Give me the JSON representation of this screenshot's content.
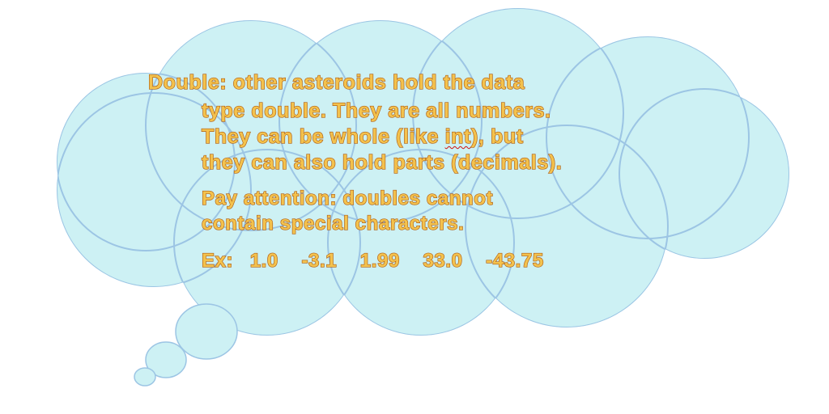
{
  "description_block": {
    "heading": "Double:",
    "line1": "other asteroids hold the data",
    "line2": "type double. They are all numbers.",
    "line3_before": "They can be whole (like ",
    "line3_flagged": "int",
    "line3_after": "), but",
    "line4": "they can also hold parts (decimals)."
  },
  "note_block": {
    "line1": "Pay attention: doubles cannot",
    "line2": "contain special characters."
  },
  "examples": {
    "label": "Ex:",
    "values": [
      "1.0",
      "-3.1",
      "1.99",
      "33.0",
      "-43.75"
    ]
  },
  "colors": {
    "cloud_fill": "#cdf1f4",
    "cloud_outline": "#9cc5e4",
    "text_fill": "#f3c24d",
    "text_outline": "#b05e14",
    "spellcheck_squiggle": "#d01010"
  }
}
